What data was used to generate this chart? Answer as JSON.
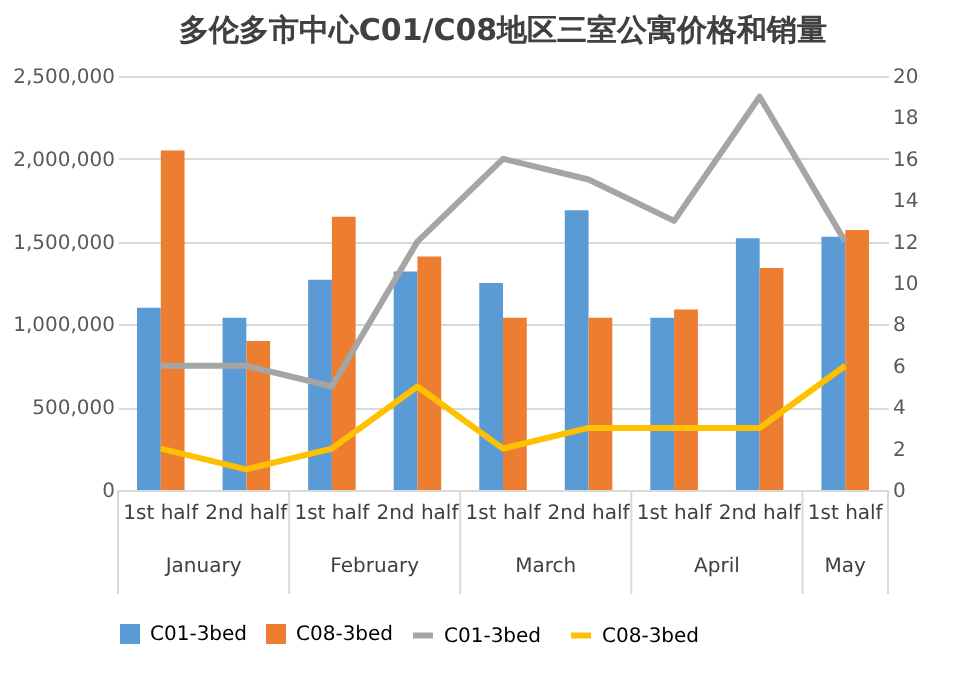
{
  "chart_data": {
    "type": "bar",
    "title": "多伦多市中心C01/C08地区三室公寓价格和销量",
    "categories": [
      "1st half",
      "2nd half",
      "1st half",
      "2nd half",
      "1st half",
      "2nd half",
      "1st half",
      "2nd half",
      "1st half"
    ],
    "annotations": [
      "January",
      "February",
      "March",
      "April",
      "May"
    ],
    "series": [
      {
        "name": "C01-3bed",
        "color": "#5b9bd5",
        "values": [
          1100000,
          1040000,
          1270000,
          1320000,
          1250000,
          1690000,
          1040000,
          1520000,
          1530000
        ]
      },
      {
        "name": "C08-3bed",
        "color": "#ed7d31",
        "values": [
          2050000,
          900000,
          1650000,
          1410000,
          1040000,
          1040000,
          1090000,
          1340000,
          1570000
        ]
      },
      {
        "name": "C01-3bed",
        "type": "line",
        "axis": "y2",
        "color": "#a5a5a5",
        "values": [
          6,
          6,
          5,
          12,
          16,
          15,
          13,
          19,
          12
        ]
      },
      {
        "name": "C08-3bed",
        "type": "line",
        "axis": "y2",
        "color": "#ffc000",
        "values": [
          2,
          1,
          2,
          5,
          2,
          3,
          3,
          3,
          6
        ]
      }
    ],
    "ylim": [
      0,
      2500000
    ],
    "yticks": [
      0,
      {
        "value": 500000,
        "label": "500,000"
      },
      {
        "value": 1000000,
        "label": "1,000,000"
      },
      {
        "value": 1500000,
        "label": "1,500,000"
      },
      {
        "value": 2000000,
        "label": "2,000,000"
      },
      {
        "value": 2500000,
        "label": "2,500,000"
      }
    ],
    "y2lim": [
      0,
      20
    ],
    "y2ticks": [
      0,
      2,
      4,
      6,
      8,
      10,
      12,
      14,
      16,
      18,
      20
    ],
    "grid": "y",
    "legend": "bottom",
    "marker": "none",
    "line_style": "solid"
  }
}
